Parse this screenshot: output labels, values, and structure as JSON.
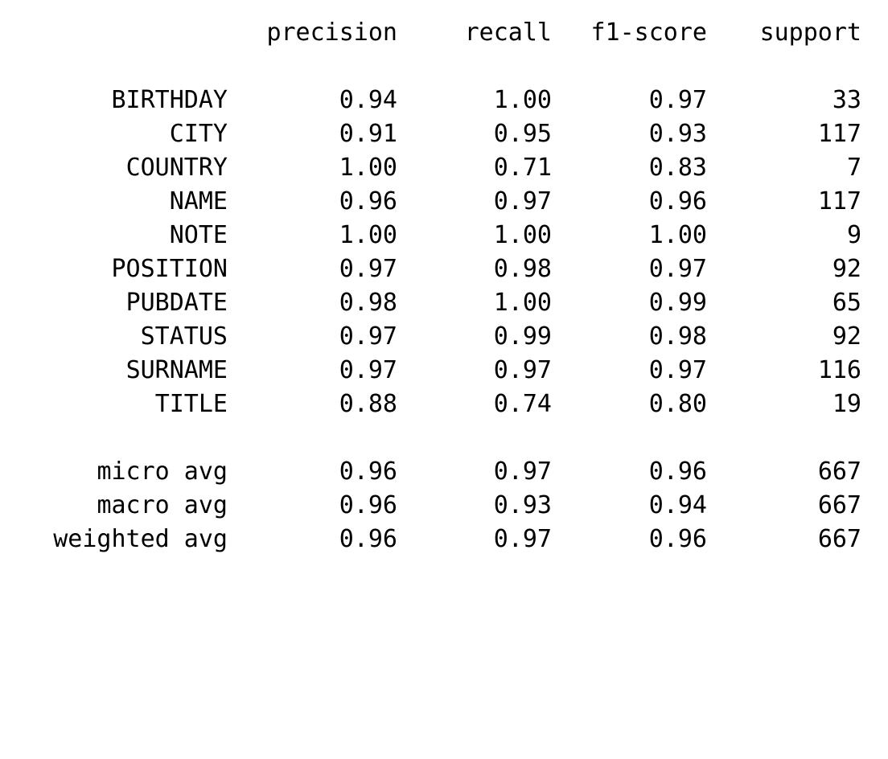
{
  "report": {
    "headers": {
      "precision": "precision",
      "recall": "recall",
      "f1": "f1-score",
      "support": "support"
    },
    "classes": [
      {
        "label": "BIRTHDAY",
        "precision": "0.94",
        "recall": "1.00",
        "f1": "0.97",
        "support": "33"
      },
      {
        "label": "CITY",
        "precision": "0.91",
        "recall": "0.95",
        "f1": "0.93",
        "support": "117"
      },
      {
        "label": "COUNTRY",
        "precision": "1.00",
        "recall": "0.71",
        "f1": "0.83",
        "support": "7"
      },
      {
        "label": "NAME",
        "precision": "0.96",
        "recall": "0.97",
        "f1": "0.96",
        "support": "117"
      },
      {
        "label": "NOTE",
        "precision": "1.00",
        "recall": "1.00",
        "f1": "1.00",
        "support": "9"
      },
      {
        "label": "POSITION",
        "precision": "0.97",
        "recall": "0.98",
        "f1": "0.97",
        "support": "92"
      },
      {
        "label": "PUBDATE",
        "precision": "0.98",
        "recall": "1.00",
        "f1": "0.99",
        "support": "65"
      },
      {
        "label": "STATUS",
        "precision": "0.97",
        "recall": "0.99",
        "f1": "0.98",
        "support": "92"
      },
      {
        "label": "SURNAME",
        "precision": "0.97",
        "recall": "0.97",
        "f1": "0.97",
        "support": "116"
      },
      {
        "label": "TITLE",
        "precision": "0.88",
        "recall": "0.74",
        "f1": "0.80",
        "support": "19"
      }
    ],
    "averages": [
      {
        "label": "micro avg",
        "precision": "0.96",
        "recall": "0.97",
        "f1": "0.96",
        "support": "667"
      },
      {
        "label": "macro avg",
        "precision": "0.96",
        "recall": "0.93",
        "f1": "0.94",
        "support": "667"
      },
      {
        "label": "weighted avg",
        "precision": "0.96",
        "recall": "0.97",
        "f1": "0.96",
        "support": "667"
      }
    ]
  }
}
